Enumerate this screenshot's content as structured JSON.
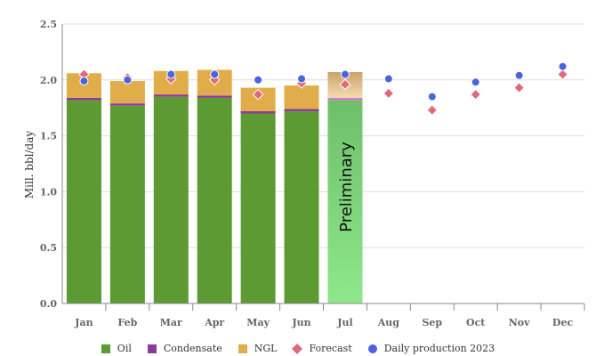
{
  "chart_data": {
    "type": "bar",
    "stacked": true,
    "ylabel": "Mill. bbl/day",
    "ylim": [
      0,
      2.5
    ],
    "yticks": [
      "0.0",
      "0.5",
      "1.0",
      "1.5",
      "2.0",
      "2.5"
    ],
    "grid": true,
    "legend_position": "bottom",
    "categories": [
      "Jan",
      "Feb",
      "Mar",
      "Apr",
      "May",
      "Jun",
      "Jul",
      "Aug",
      "Sep",
      "Oct",
      "Nov",
      "Dec"
    ],
    "annotation": "Preliminary",
    "series": [
      {
        "name": "Oil",
        "kind": "bar",
        "color": "#5e9a34",
        "values": [
          1.82,
          1.77,
          1.85,
          1.84,
          1.7,
          1.72,
          1.82,
          null,
          null,
          null,
          null,
          null
        ]
      },
      {
        "name": "Condensate",
        "kind": "bar",
        "color": "#8b3a9c",
        "values": [
          0.02,
          0.02,
          0.02,
          0.02,
          0.02,
          0.02,
          0.02,
          null,
          null,
          null,
          null,
          null
        ]
      },
      {
        "name": "NGL",
        "kind": "bar",
        "color": "#e0ad4a",
        "values": [
          0.22,
          0.2,
          0.21,
          0.23,
          0.21,
          0.21,
          0.23,
          null,
          null,
          null,
          null,
          null
        ]
      },
      {
        "name": "Forecast",
        "kind": "scatter",
        "marker": "diamond",
        "color": "#e0697a",
        "values": [
          2.05,
          2.02,
          2.01,
          2.0,
          1.87,
          1.97,
          1.96,
          1.88,
          1.73,
          1.87,
          1.93,
          2.05
        ]
      },
      {
        "name": "Daily production 2023",
        "kind": "scatter",
        "marker": "circle",
        "color": "#4a63e0",
        "values": [
          1.99,
          2.0,
          2.05,
          2.05,
          2.0,
          2.01,
          2.05,
          2.01,
          1.85,
          1.98,
          2.04,
          2.12
        ]
      }
    ]
  }
}
